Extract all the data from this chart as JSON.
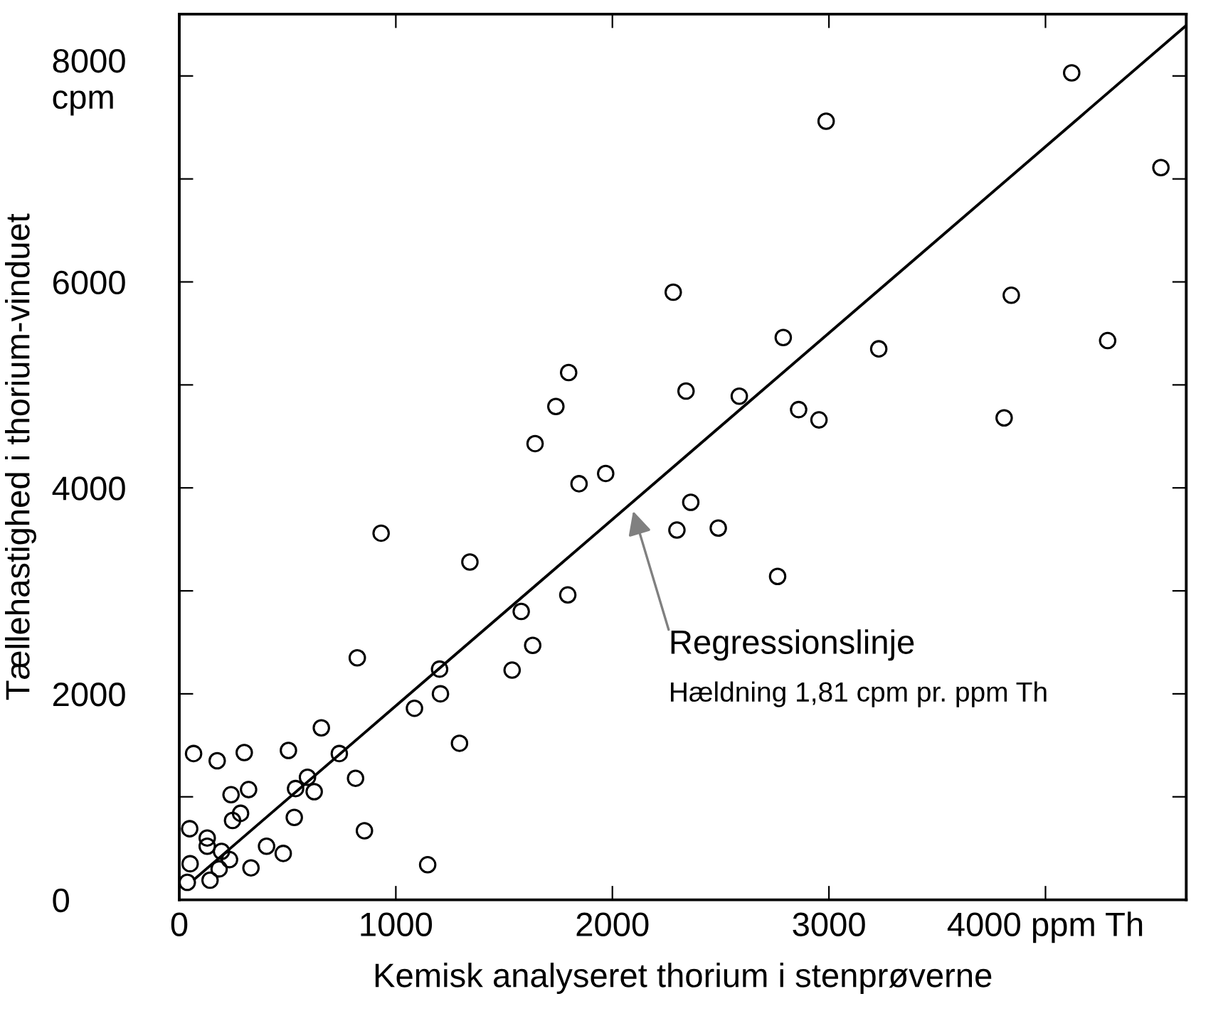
{
  "chart_data": {
    "type": "scatter",
    "xlabel": "Kemisk analyseret thorium i stenprøverne",
    "ylabel": "Tællehastighed i thorium-vinduet",
    "xlim": [
      0,
      4650
    ],
    "ylim": [
      0,
      8600
    ],
    "xticks": [
      0,
      1000,
      2000,
      3000,
      {
        "value": 4000,
        "label": "4000 ppm Th"
      }
    ],
    "yticks": [
      0,
      {
        "value": 1000,
        "label": null
      },
      2000,
      {
        "value": 3000,
        "label": null
      },
      4000,
      {
        "value": 5000,
        "label": null
      },
      6000,
      {
        "value": 7000,
        "label": null
      },
      {
        "value": 8000,
        "label": "8000\ncpm"
      }
    ],
    "grid": false,
    "legend": false,
    "series": [
      {
        "type": "scatter",
        "marker": "circle",
        "color": "#000000",
        "x": [
          932,
          1342,
          1846,
          1969,
          2298,
          1794,
          1579,
          1632,
          1537,
          822,
          1202,
          1206,
          1086,
          1294,
          656,
          739,
          814,
          855,
          1147,
          592,
          623,
          537,
          531,
          504,
          300,
          175,
          66,
          320,
          239,
          283,
          246,
          48,
          129,
          129,
          195,
          232,
          50,
          184,
          331,
          403,
          480,
          37,
          142,
          4121,
          2987,
          4533,
          2281,
          3842,
          2789,
          3230,
          4287,
          2340,
          2586,
          2860,
          2954,
          3809,
          1798,
          1739,
          1643,
          2362,
          2489,
          2763
        ],
        "values": [
          3560,
          3280,
          4040,
          4140,
          3590,
          2960,
          2800,
          2470,
          2230,
          2350,
          2240,
          2000,
          1860,
          1520,
          1670,
          1420,
          1180,
          670,
          340,
          1190,
          1050,
          1080,
          800,
          1450,
          1430,
          1350,
          1420,
          1070,
          1020,
          840,
          770,
          690,
          600,
          520,
          470,
          390,
          350,
          300,
          310,
          520,
          450,
          170,
          190,
          8030,
          7560,
          7110,
          5900,
          5870,
          5460,
          5350,
          5430,
          4940,
          4890,
          4760,
          4660,
          4680,
          5120,
          4790,
          4430,
          3860,
          3610,
          3140
        ]
      },
      {
        "type": "line",
        "line_style": "solid",
        "color": "#000000",
        "x": [
          70,
          4650
        ],
        "values": [
          200,
          8490
        ]
      }
    ],
    "annotations": [
      "Regressionslinje",
      "Hældning 1,81 cpm pr. ppm Th"
    ]
  }
}
